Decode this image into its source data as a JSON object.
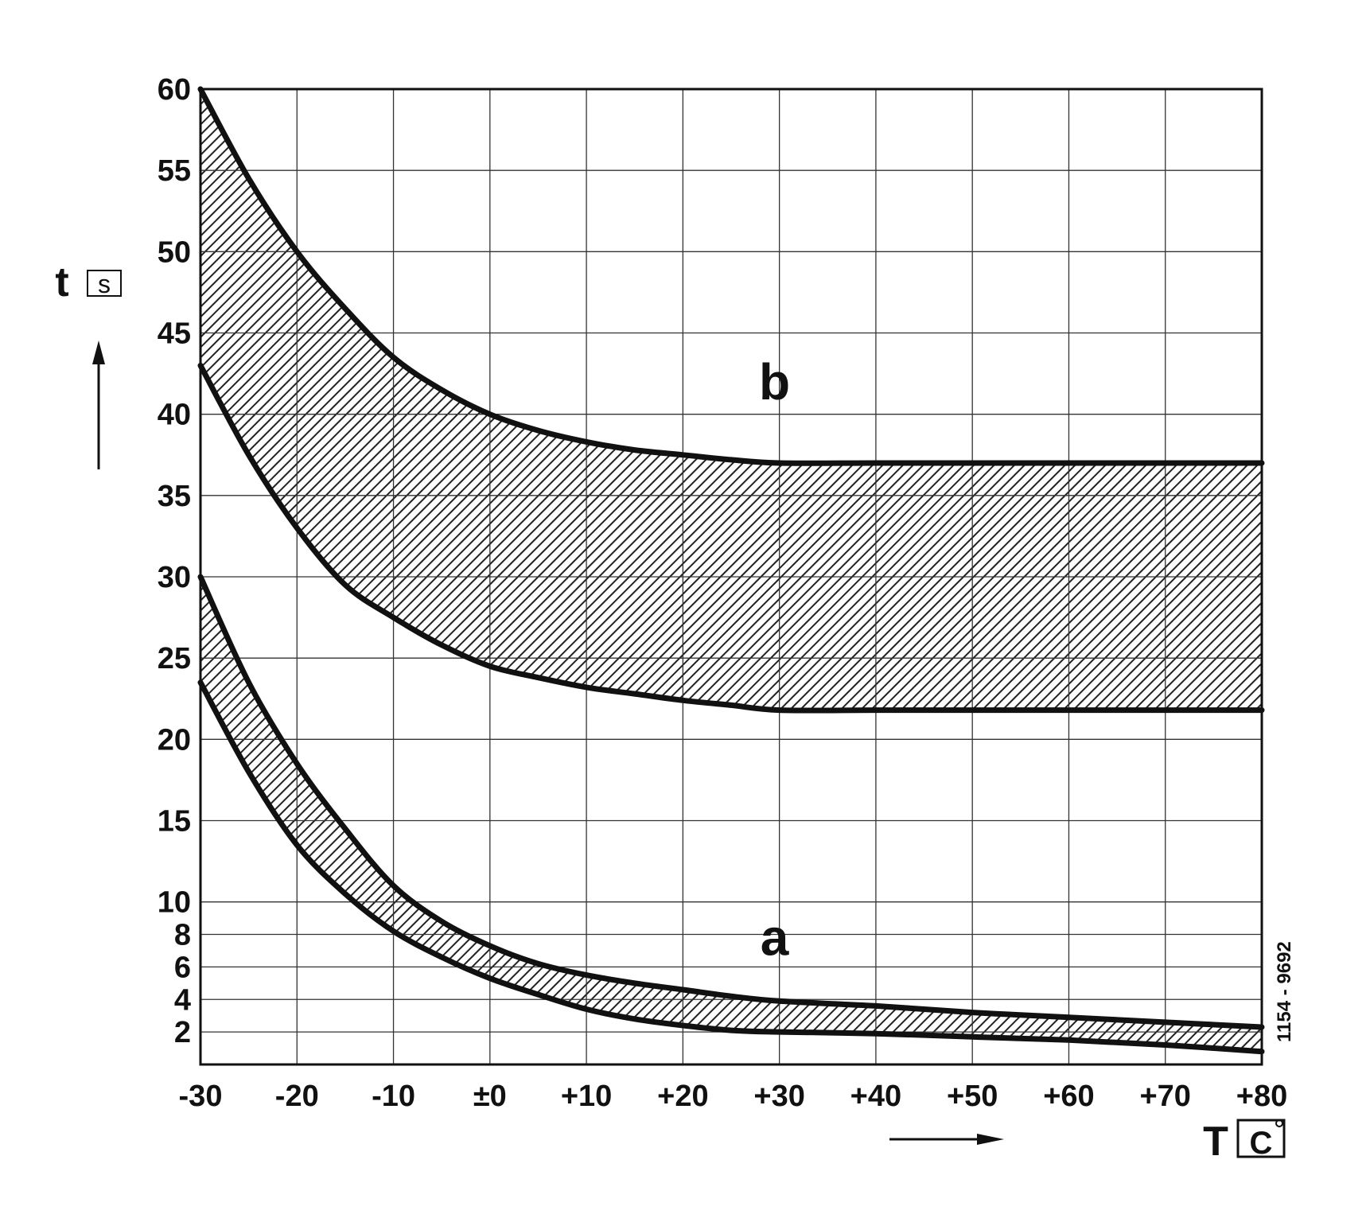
{
  "chart_data": {
    "type": "area",
    "xlabel": "T",
    "xunit": "C",
    "ylabel": "t",
    "yunit": "s",
    "xlim": [
      -30,
      80
    ],
    "ylim": [
      0,
      60
    ],
    "x_ticks": [
      -30,
      -20,
      -10,
      0,
      10,
      20,
      30,
      40,
      50,
      60,
      70,
      80
    ],
    "x_tick_labels": [
      "-30",
      "-20",
      "-10",
      "±0",
      "+10",
      "+20",
      "+30",
      "+40",
      "+50",
      "+60",
      "+70",
      "+80"
    ],
    "y_ticks": [
      2,
      4,
      6,
      8,
      10,
      15,
      20,
      25,
      30,
      35,
      40,
      45,
      50,
      55,
      60
    ],
    "y_tick_labels": [
      "2",
      "4",
      "6",
      "8",
      "10",
      "15",
      "20",
      "25",
      "30",
      "35",
      "40",
      "45",
      "50",
      "55",
      "60"
    ],
    "grid": true,
    "bands": [
      {
        "label": "a",
        "x": [
          -30,
          -25,
          -20,
          -15,
          -10,
          -5,
          0,
          5,
          10,
          15,
          20,
          25,
          30,
          40,
          50,
          60,
          70,
          80
        ],
        "upper": [
          30,
          23.5,
          18.5,
          14.5,
          11,
          8.8,
          7.3,
          6.2,
          5.5,
          5,
          4.6,
          4.2,
          3.9,
          3.6,
          3.2,
          2.9,
          2.6,
          2.3
        ],
        "lower": [
          23.5,
          18,
          13.5,
          10.5,
          8.2,
          6.6,
          5.3,
          4.3,
          3.4,
          2.8,
          2.4,
          2.1,
          2,
          1.9,
          1.7,
          1.5,
          1.2,
          0.8
        ]
      },
      {
        "label": "b",
        "x": [
          -30,
          -25,
          -20,
          -15,
          -10,
          -5,
          0,
          5,
          10,
          15,
          20,
          25,
          30,
          40,
          50,
          60,
          70,
          80
        ],
        "upper": [
          60,
          54.5,
          50,
          46.5,
          43.5,
          41.5,
          40,
          39,
          38.3,
          37.8,
          37.5,
          37.2,
          37,
          37,
          37,
          37,
          37,
          37
        ],
        "lower": [
          43,
          37.5,
          33,
          29.5,
          27.5,
          25.8,
          24.5,
          23.8,
          23.2,
          22.8,
          22.4,
          22.1,
          21.8,
          21.8,
          21.8,
          21.8,
          21.8,
          21.8
        ]
      }
    ],
    "band_labels": [
      {
        "text": "b",
        "x": 29.5,
        "y": 42
      },
      {
        "text": "a",
        "x": 29.5,
        "y": 7.8
      }
    ],
    "drawing_number": "1154 - 9692"
  }
}
